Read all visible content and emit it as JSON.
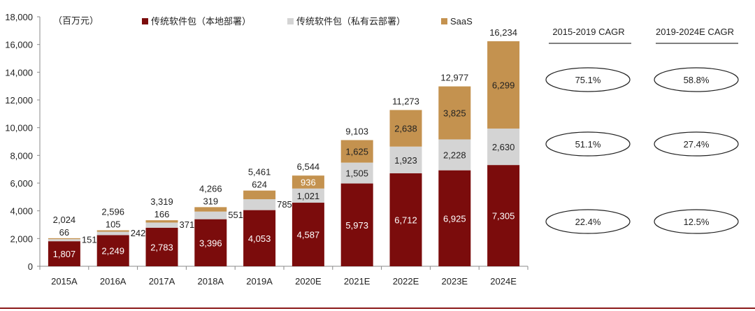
{
  "chart_data": {
    "type": "bar",
    "stacked": true,
    "unit_note": "（百万元）",
    "categories": [
      "2015A",
      "2016A",
      "2017A",
      "2018A",
      "2019A",
      "2020E",
      "2021E",
      "2022E",
      "2023E",
      "2024E"
    ],
    "series": [
      {
        "name": "传统软件包（本地部署）",
        "color": "#7b0c0c",
        "values": [
          1807,
          2249,
          2783,
          3396,
          4053,
          4587,
          5973,
          6712,
          6925,
          7305
        ]
      },
      {
        "name": "传统软件包（私有云部署）",
        "color": "#d4d4d4",
        "values": [
          151,
          242,
          371,
          551,
          785,
          1021,
          1505,
          1923,
          2228,
          2630
        ]
      },
      {
        "name": "SaaS",
        "color": "#c4924f",
        "values": [
          66,
          105,
          166,
          319,
          624,
          936,
          1625,
          2638,
          3825,
          6299
        ]
      }
    ],
    "value_labels": {
      "local": [
        "1,807",
        "2,249",
        "2,783",
        "3,396",
        "4,053",
        "4,587",
        "5,973",
        "6,712",
        "6,925",
        "7,305"
      ],
      "private": [
        "151",
        "242",
        "371",
        "551",
        "785",
        "1,021",
        "1,505",
        "1,923",
        "2,228",
        "2,630"
      ],
      "saas": [
        "66",
        "105",
        "166",
        "319",
        "624",
        "936",
        "1,625",
        "2,638",
        "3,825",
        "6,299"
      ]
    },
    "totals": [
      "2,024",
      "2,596",
      "3,319",
      "4,266",
      "5,461",
      "6,544",
      "9,103",
      "11,273",
      "12,977",
      "16,234"
    ],
    "ylim": [
      0,
      18000
    ],
    "yticks": [
      "0",
      "2,000",
      "4,000",
      "6,000",
      "8,000",
      "10,000",
      "12,000",
      "14,000",
      "16,000",
      "18,000"
    ],
    "ytick_values": [
      0,
      2000,
      4000,
      6000,
      8000,
      10000,
      12000,
      14000,
      16000,
      18000
    ]
  },
  "cagr": {
    "headers": [
      "2015-2019 CAGR",
      "2019-2024E CAGR"
    ],
    "rows": [
      [
        "75.1%",
        "58.8%"
      ],
      [
        "51.1%",
        "27.4%"
      ],
      [
        "22.4%",
        "12.5%"
      ]
    ]
  },
  "colors": {
    "accent_line": "#8b1a1a"
  }
}
